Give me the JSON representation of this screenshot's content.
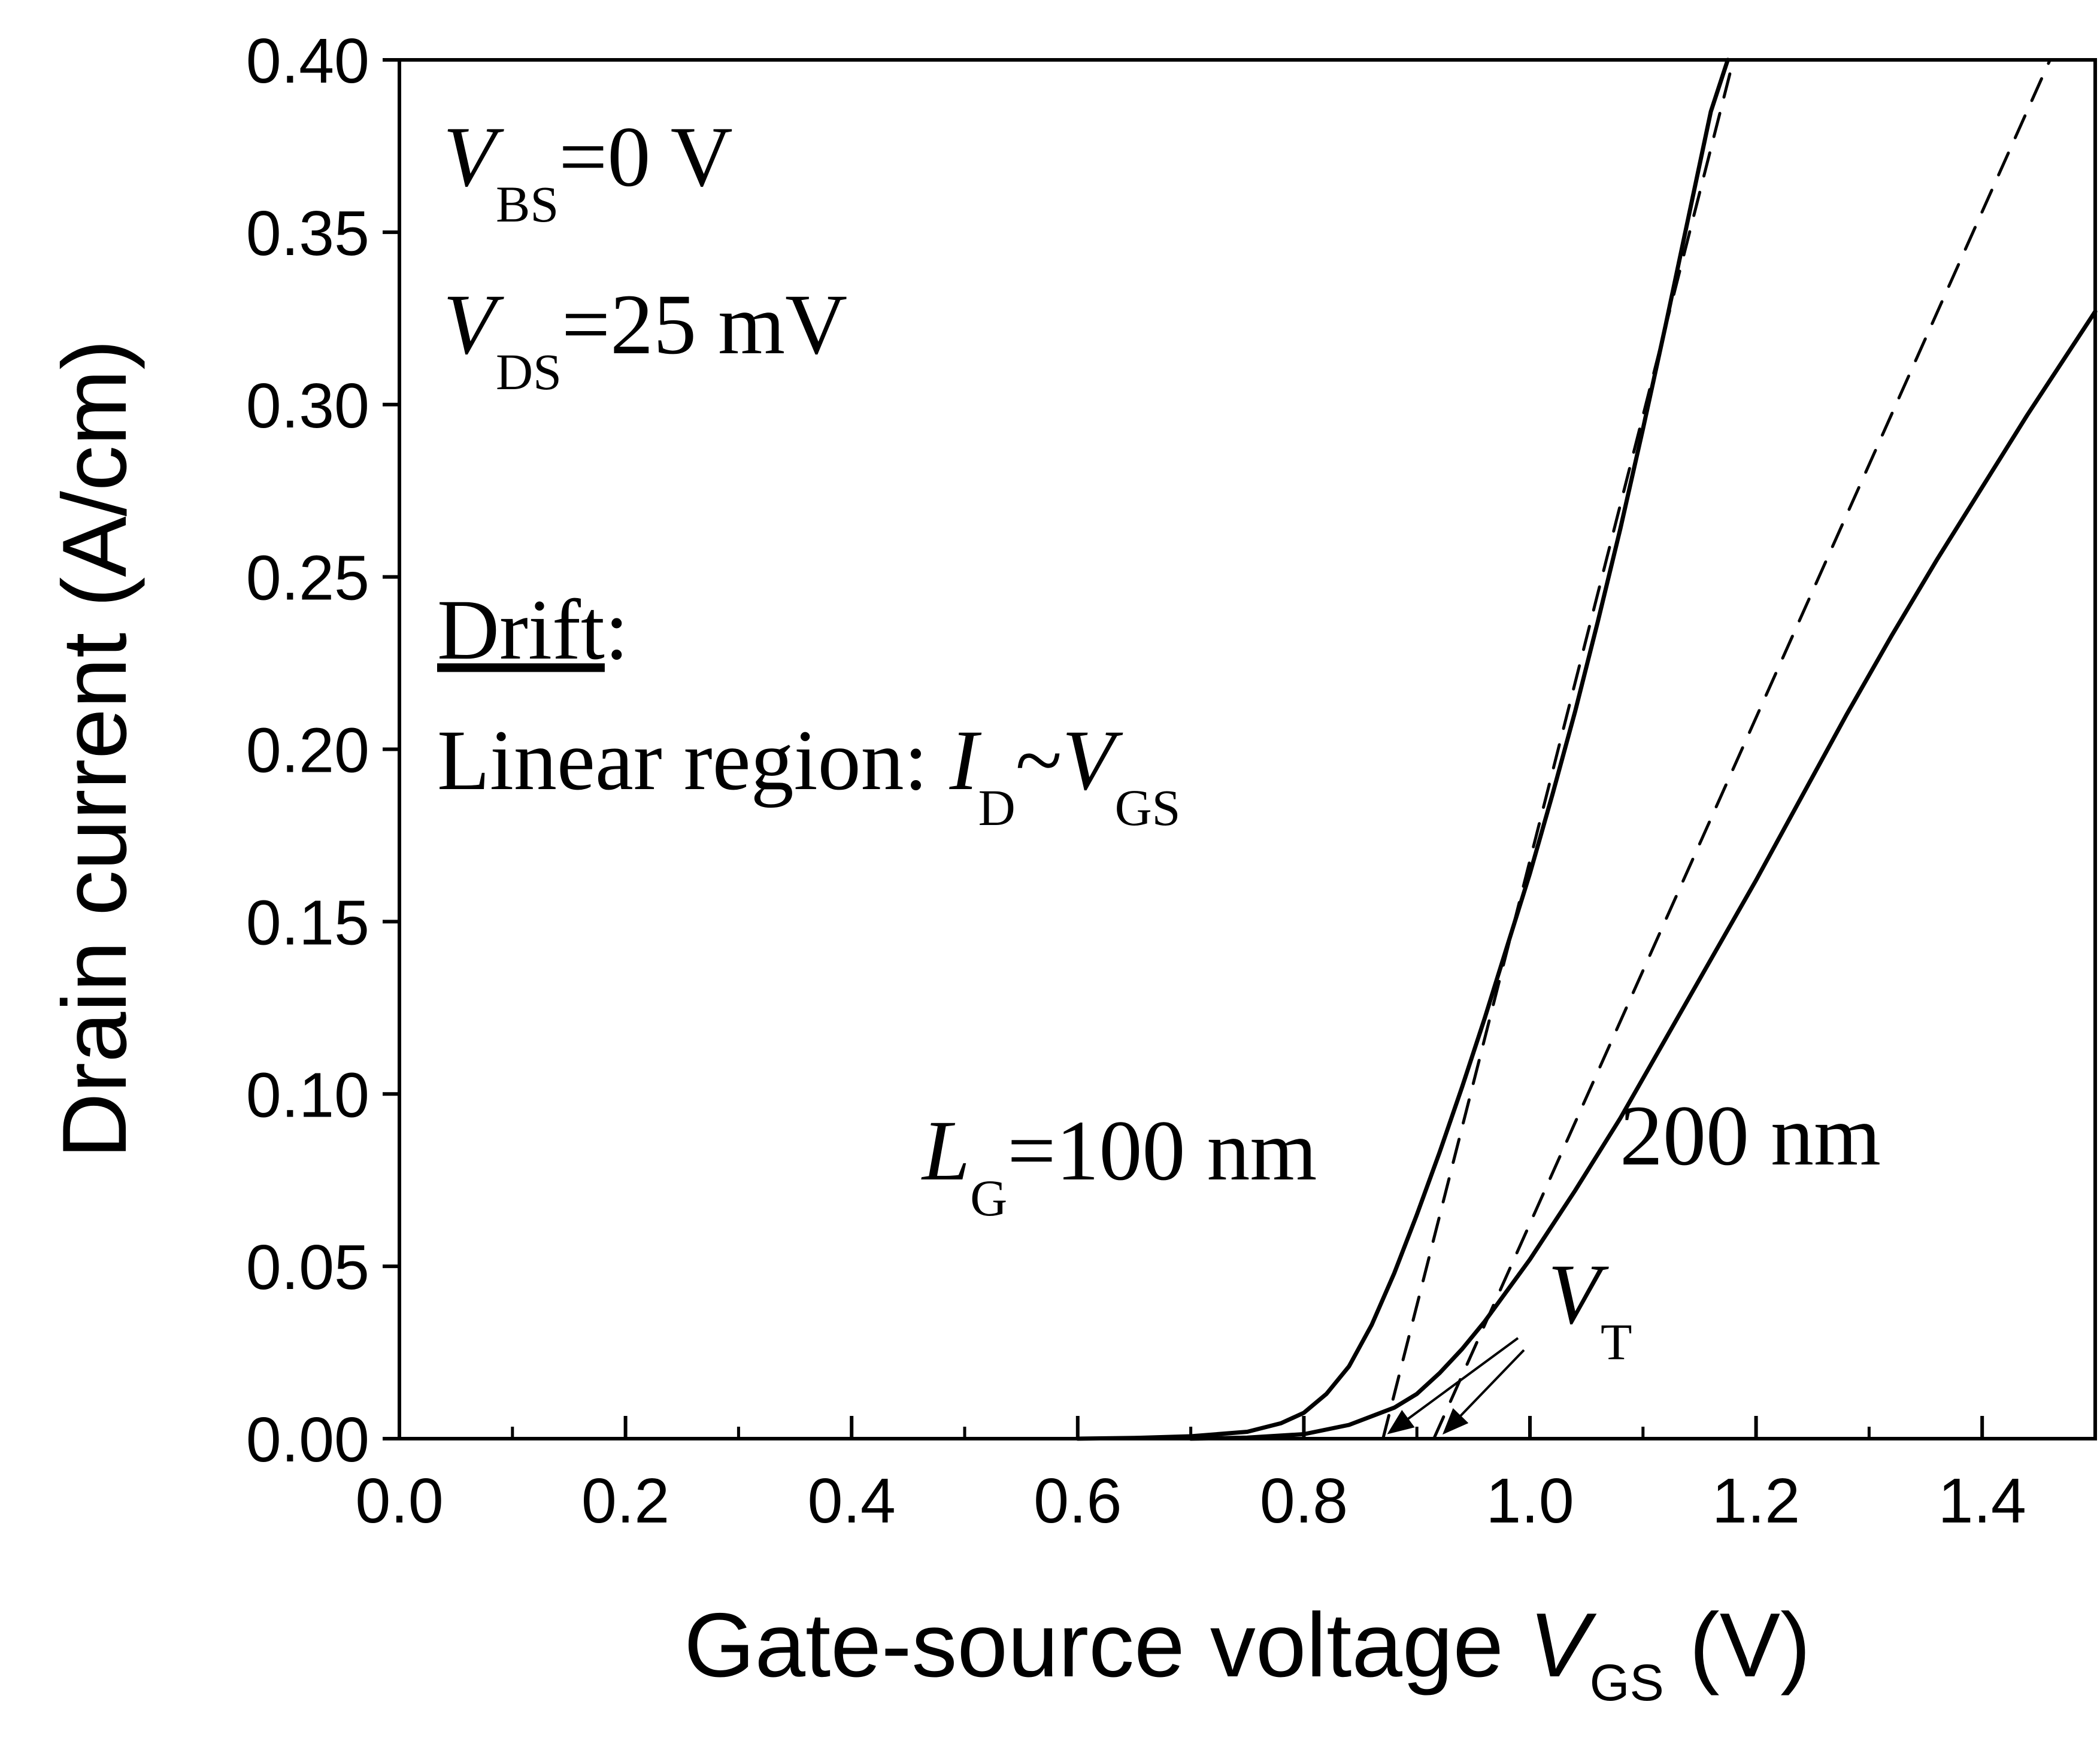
{
  "chart_data": {
    "type": "line",
    "x_axis": {
      "label_main": "Gate-source voltage ",
      "label_var": "V",
      "label_sub": "GS",
      "label_unit": " (V)",
      "range": [
        0.0,
        1.5
      ],
      "ticks": [
        "0.0",
        "0.2",
        "0.4",
        "0.6",
        "0.8",
        "1.0",
        "1.2",
        "1.4"
      ]
    },
    "y_axis": {
      "label": "Drain current (A/cm)",
      "range": [
        0.0,
        0.4
      ],
      "ticks": [
        "0.00",
        "0.05",
        "0.10",
        "0.15",
        "0.20",
        "0.25",
        "0.30",
        "0.35",
        "0.40"
      ]
    },
    "grid": false,
    "series": [
      {
        "style": "solid",
        "x": [
          0.6,
          0.65,
          0.7,
          0.75,
          0.78,
          0.8,
          0.82,
          0.84,
          0.86,
          0.88,
          0.9,
          0.92,
          0.94,
          0.96,
          0.98,
          1.0,
          1.02,
          1.04,
          1.06,
          1.08,
          1.1,
          1.12,
          1.14,
          1.16,
          1.175
        ],
        "y": [
          0.0,
          0.0002,
          0.0007,
          0.002,
          0.0045,
          0.0075,
          0.013,
          0.021,
          0.033,
          0.048,
          0.065,
          0.083,
          0.102,
          0.122,
          0.143,
          0.164,
          0.187,
          0.211,
          0.237,
          0.264,
          0.293,
          0.323,
          0.354,
          0.385,
          0.4
        ]
      },
      {
        "style": "dashed",
        "x": [
          0.87,
          1.18
        ],
        "y": [
          0.0,
          0.4
        ]
      },
      {
        "style": "solid",
        "x": [
          0.7,
          0.75,
          0.8,
          0.84,
          0.88,
          0.9,
          0.92,
          0.94,
          0.96,
          0.98,
          1.0,
          1.04,
          1.08,
          1.12,
          1.16,
          1.2,
          1.24,
          1.28,
          1.32,
          1.36,
          1.4,
          1.44,
          1.48,
          1.5
        ],
        "y": [
          0.0,
          0.0003,
          0.0013,
          0.004,
          0.009,
          0.013,
          0.019,
          0.026,
          0.034,
          0.043,
          0.052,
          0.072,
          0.093,
          0.116,
          0.139,
          0.162,
          0.186,
          0.21,
          0.233,
          0.255,
          0.276,
          0.297,
          0.317,
          0.327
        ]
      },
      {
        "style": "dashed",
        "x": [
          0.915,
          1.46
        ],
        "y": [
          0.0,
          0.4
        ]
      }
    ],
    "annotations": {
      "vbs": {
        "var": "V",
        "sub": "BS",
        "text": "=0 V"
      },
      "vds": {
        "var": "V",
        "sub": "DS",
        "text": "=25 mV"
      },
      "drift": {
        "text": "Drift",
        "suffix": ":"
      },
      "linear": {
        "text": "Linear region: ",
        "var1": "I",
        "sub1": "D",
        "tilde": "~",
        "var2": "V",
        "sub2": "GS"
      },
      "lg": {
        "var": "L",
        "sub": "G",
        "text": "=100 nm"
      },
      "lg200": {
        "text": "200 nm"
      },
      "vt": {
        "var": "V",
        "sub": "T"
      }
    }
  }
}
